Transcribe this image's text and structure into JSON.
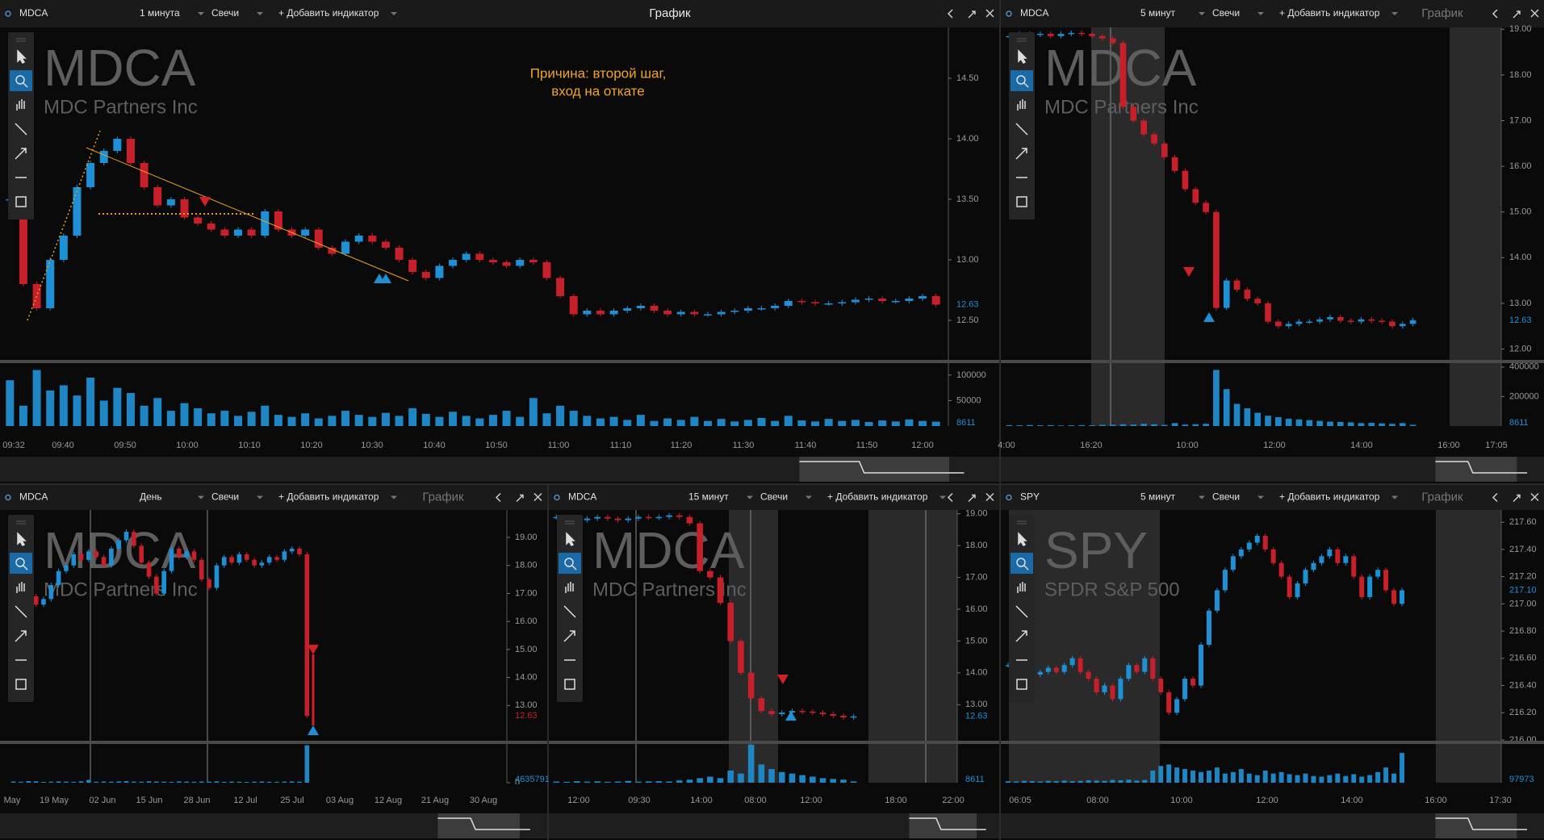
{
  "colors": {
    "up": "#1e90d6",
    "down": "#c8202a",
    "volume": "#1f86c6"
  },
  "panels": [
    {
      "header": {
        "symbol": "MDCA",
        "interval": "1 минута",
        "style": "Свечи",
        "add_indicator": "+ Добавить индикатор",
        "title": "График"
      },
      "watermark": {
        "symbol": "MDCA",
        "company": "MDC Partners Inc"
      },
      "annotation": [
        "Причина: второй шаг,",
        "вход на откате"
      ],
      "ylim": [
        12.18,
        14.92
      ],
      "yticks": [
        {
          "value": 12.5,
          "label": "12.50"
        },
        {
          "value": 13,
          "label": "13.00"
        },
        {
          "value": 13.5,
          "label": "13.50"
        },
        {
          "value": 14,
          "label": "14.00"
        },
        {
          "value": 14.5,
          "label": "14.50"
        }
      ],
      "last_price": 12.63,
      "last_price_color": "#1e90d6",
      "volume_ylim": [
        0,
        122000
      ],
      "volume_ticks": [
        50000,
        100000
      ],
      "last_volume": 8611,
      "xlabels": [
        "09:32",
        "09:40",
        "09:50",
        "10:00",
        "10:10",
        "10:20",
        "10:30",
        "10:40",
        "10:50",
        "11:00",
        "11:10",
        "11:20",
        "11:30",
        "11:40",
        "11:50",
        "12:00"
      ],
      "close": [
        13.5,
        12.8,
        12.6,
        13.0,
        13.2,
        13.6,
        13.8,
        13.9,
        14.0,
        13.8,
        13.6,
        13.45,
        13.5,
        13.35,
        13.3,
        13.25,
        13.2,
        13.25,
        13.2,
        13.4,
        13.25,
        13.2,
        13.25,
        13.1,
        13.05,
        13.15,
        13.2,
        13.15,
        13.1,
        13.0,
        12.9,
        12.85,
        12.95,
        13.0,
        13.05,
        13.0,
        12.98,
        12.95,
        13.0,
        12.98,
        12.85,
        12.7,
        12.55,
        12.58,
        12.55,
        12.58,
        12.6,
        12.62,
        12.58,
        12.55,
        12.57,
        12.55,
        12.55,
        12.57,
        12.58,
        12.6,
        12.6,
        12.62,
        12.66,
        12.65,
        12.64,
        12.64,
        12.65,
        12.67,
        12.68,
        12.66,
        12.66,
        12.68,
        12.7,
        12.63
      ],
      "volume": [
        90000,
        40000,
        110000,
        70000,
        80000,
        60000,
        95000,
        50000,
        75000,
        65000,
        40000,
        55000,
        30000,
        45000,
        35000,
        25000,
        30000,
        20000,
        28000,
        40000,
        22000,
        18000,
        25000,
        15000,
        20000,
        30000,
        22000,
        18000,
        26000,
        20000,
        35000,
        24000,
        18000,
        28000,
        20000,
        15000,
        22000,
        30000,
        18000,
        55000,
        25000,
        40000,
        30000,
        20000,
        15000,
        18000,
        12000,
        22000,
        10000,
        15000,
        12000,
        18000,
        10000,
        14000,
        9000,
        12000,
        16000,
        10000,
        20000,
        11000,
        9000,
        14000,
        10000,
        12000,
        8000,
        11000,
        9000,
        13000,
        10000,
        8611
      ]
    },
    {
      "header": {
        "symbol": "MDCA",
        "interval": "5 минут",
        "style": "Свечи",
        "add_indicator": "+ Добавить индикатор",
        "title": "График"
      },
      "watermark": {
        "symbol": "MDCA",
        "company": "MDC Partners Inc"
      },
      "ylim": [
        11.78,
        19.04
      ],
      "yticks": [
        {
          "value": 12,
          "label": "12.00"
        },
        {
          "value": 13,
          "label": "13.00"
        },
        {
          "value": 14,
          "label": "14.00"
        },
        {
          "value": 15,
          "label": "15.00"
        },
        {
          "value": 16,
          "label": "16.00"
        },
        {
          "value": 17,
          "label": "17.00"
        },
        {
          "value": 18,
          "label": "18.00"
        },
        {
          "value": 19,
          "label": "19.00"
        }
      ],
      "last_price": 12.63,
      "last_price_color": "#1e90d6",
      "volume_ylim": [
        0,
        421000
      ],
      "volume_ticks": [
        200000,
        400000
      ],
      "last_volume": 8611,
      "xlabels": [
        "4:00",
        "16:20",
        "10:00",
        "12:00",
        "14:00",
        "16:00",
        "17:05"
      ],
      "close": [
        18.85,
        18.9,
        18.88,
        18.9,
        18.85,
        18.9,
        18.92,
        18.9,
        18.85,
        18.8,
        18.7,
        17.3,
        17.0,
        16.7,
        16.5,
        16.2,
        15.9,
        15.5,
        15.2,
        15.0,
        12.9,
        13.5,
        13.3,
        13.1,
        13.0,
        12.6,
        12.5,
        12.55,
        12.6,
        12.6,
        12.65,
        12.7,
        12.62,
        12.6,
        12.65,
        12.62,
        12.6,
        12.5,
        12.55,
        12.63
      ],
      "volume": [
        6000,
        5000,
        7000,
        5000,
        6000,
        4000,
        5000,
        6000,
        5000,
        8000,
        9000,
        12000,
        10000,
        15000,
        12000,
        8000,
        20000,
        10000,
        12000,
        15000,
        380000,
        250000,
        150000,
        120000,
        90000,
        70000,
        60000,
        50000,
        45000,
        40000,
        35000,
        30000,
        28000,
        25000,
        20000,
        22000,
        18000,
        15000,
        20000,
        8611
      ]
    },
    {
      "header": {
        "symbol": "MDCA",
        "interval": "День",
        "style": "Свечи",
        "add_indicator": "+ Добавить индикатор",
        "title": "График"
      },
      "watermark": {
        "symbol": "MDCA",
        "company": "MDC Partners Inc"
      },
      "ylim": [
        11.77,
        19.98
      ],
      "yticks": [
        {
          "value": 13,
          "label": "13.00"
        },
        {
          "value": 14,
          "label": "14.00"
        },
        {
          "value": 15,
          "label": "15.00"
        },
        {
          "value": 16,
          "label": "16.00"
        },
        {
          "value": 17,
          "label": "17.00"
        },
        {
          "value": 18,
          "label": "18.00"
        },
        {
          "value": 19,
          "label": "19.00"
        }
      ],
      "last_price": 12.63,
      "last_price_color": "#c8202a",
      "volume_ylim": [
        0,
        4900000
      ],
      "volume_ticks": [
        0
      ],
      "last_volume": 4635791,
      "xlabels": [
        "May",
        "19 May",
        "02 Jun",
        "15 Jun",
        "28 Jun",
        "12 Jul",
        "25 Jul",
        "03 Aug",
        "12 Aug",
        "21 Aug",
        "30 Aug"
      ],
      "close": [
        17.5,
        17.2,
        16.9,
        16.6,
        16.8,
        17.3,
        17.8,
        18.0,
        18.4,
        18.2,
        18.5,
        18.3,
        18.0,
        18.6,
        18.9,
        19.2,
        18.7,
        18.1,
        17.6,
        17.0,
        17.8,
        18.6,
        18.3,
        18.5,
        18.2,
        17.5,
        17.2,
        18.0,
        18.3,
        18.1,
        18.4,
        18.2,
        18.0,
        18.1,
        18.3,
        18.2,
        18.5,
        18.6,
        18.4,
        12.63
      ],
      "volume": [
        150000,
        120000,
        200000,
        180000,
        100000,
        130000,
        160000,
        140000,
        110000,
        170000,
        350000,
        120000,
        150000,
        130000,
        160000,
        200000,
        140000,
        120000,
        180000,
        150000,
        130000,
        110000,
        160000,
        140000,
        120000,
        150000,
        130000,
        170000,
        110000,
        140000,
        120000,
        100000,
        130000,
        150000,
        120000,
        110000,
        140000,
        160000,
        130000,
        4635791
      ]
    },
    {
      "header": {
        "symbol": "MDCA",
        "interval": "15 минут",
        "style": "Свечи",
        "add_indicator": "+ Добавить индикатор"
      },
      "watermark": {
        "symbol": "MDCA",
        "company": "MDC Partners Inc"
      },
      "ylim": [
        11.89,
        19.12
      ],
      "yticks": [
        {
          "value": 13,
          "label": "13.00"
        },
        {
          "value": 14,
          "label": "14.00"
        },
        {
          "value": 15,
          "label": "15.00"
        },
        {
          "value": 16,
          "label": "16.00"
        },
        {
          "value": 17,
          "label": "17.00"
        },
        {
          "value": 18,
          "label": "18.00"
        },
        {
          "value": 19,
          "label": "19.00"
        }
      ],
      "last_price": 12.63,
      "last_price_color": "#1e90d6",
      "volume_ylim": [
        0,
        260000
      ],
      "volume_ticks": [],
      "last_volume": 8611,
      "xlabels": [
        "12:00",
        "09:30",
        "14:00",
        "08:00",
        "12:00",
        "18:00",
        "22:00"
      ],
      "close": [
        18.9,
        18.85,
        18.8,
        18.85,
        18.9,
        18.85,
        18.8,
        18.85,
        18.9,
        18.88,
        18.9,
        18.95,
        18.9,
        18.7,
        17.2,
        17.0,
        16.2,
        15.0,
        14.0,
        13.2,
        12.8,
        12.7,
        12.75,
        12.8,
        12.78,
        12.75,
        12.7,
        12.65,
        12.6,
        12.63
      ],
      "volume": [
        8000,
        6000,
        10000,
        7000,
        9000,
        6000,
        8000,
        12000,
        7000,
        9000,
        10000,
        8000,
        15000,
        20000,
        30000,
        40000,
        30000,
        80000,
        60000,
        250000,
        120000,
        90000,
        70000,
        60000,
        50000,
        40000,
        30000,
        25000,
        20000,
        8611
      ]
    },
    {
      "header": {
        "symbol": "SPY",
        "interval": "5 минут",
        "style": "Свечи",
        "add_indicator": "+ Добавить индикатор",
        "title": "График"
      },
      "watermark": {
        "symbol": "SPY",
        "company": "SPDR S&P 500"
      },
      "ylim": [
        216.0,
        217.69
      ],
      "yticks": [
        {
          "value": 216,
          "label": "216.00"
        },
        {
          "value": 216.2,
          "label": "216.20"
        },
        {
          "value": 216.4,
          "label": "216.40"
        },
        {
          "value": 216.6,
          "label": "216.60"
        },
        {
          "value": 216.8,
          "label": "216.80"
        },
        {
          "value": 217,
          "label": "217.00"
        },
        {
          "value": 217.2,
          "label": "217.20"
        },
        {
          "value": 217.4,
          "label": "217.40"
        },
        {
          "value": 217.6,
          "label": "217.60"
        }
      ],
      "last_price": {
        "value": 217.1,
        "label": "217.10"
      },
      "last_price_color": "#1e90d6",
      "volume_ylim": [
        0,
        130000
      ],
      "volume_ticks": [],
      "last_volume": 97973,
      "xlabels": [
        "06:05",
        "08:00",
        "10:00",
        "12:00",
        "14:00",
        "16:00",
        "17:30"
      ],
      "close": [
        216.55,
        216.5,
        216.52,
        216.48,
        216.5,
        216.53,
        216.5,
        216.55,
        216.6,
        216.5,
        216.45,
        216.35,
        216.4,
        216.3,
        216.45,
        216.55,
        216.5,
        216.6,
        216.45,
        216.35,
        216.2,
        216.3,
        216.45,
        216.4,
        216.7,
        216.95,
        217.1,
        217.25,
        217.35,
        217.4,
        217.45,
        217.5,
        217.4,
        217.3,
        217.2,
        217.05,
        217.15,
        217.25,
        217.3,
        217.35,
        217.4,
        217.3,
        217.35,
        217.2,
        217.05,
        217.2,
        217.25,
        217.1,
        217.0,
        217.1
      ],
      "volume": [
        5000,
        4000,
        6000,
        5000,
        4000,
        6000,
        5000,
        7000,
        5000,
        6000,
        8000,
        7000,
        6000,
        9000,
        8000,
        10000,
        7000,
        9000,
        40000,
        55000,
        60000,
        50000,
        45000,
        40000,
        35000,
        40000,
        50000,
        30000,
        35000,
        45000,
        30000,
        25000,
        40000,
        30000,
        35000,
        28000,
        25000,
        30000,
        22000,
        20000,
        25000,
        30000,
        22000,
        28000,
        20000,
        25000,
        35000,
        50000,
        30000,
        97973
      ]
    }
  ]
}
